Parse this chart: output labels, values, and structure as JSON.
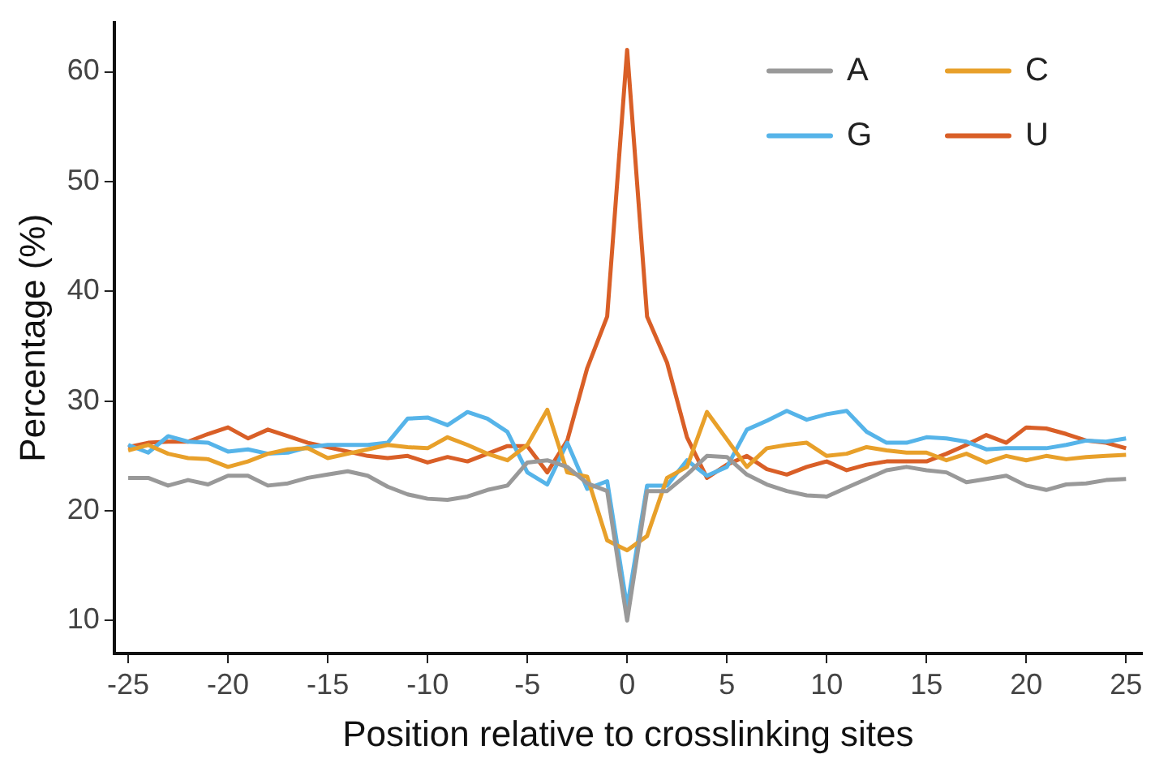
{
  "chart_data": {
    "type": "line",
    "xlabel": "Position relative to crosslinking sites",
    "ylabel": "Percentage (%)",
    "x": [
      -25,
      -24,
      -23,
      -22,
      -21,
      -20,
      -19,
      -18,
      -17,
      -16,
      -15,
      -14,
      -13,
      -12,
      -11,
      -10,
      -9,
      -8,
      -7,
      -6,
      -5,
      -4,
      -3,
      -2,
      -1,
      0,
      1,
      2,
      3,
      4,
      5,
      6,
      7,
      8,
      9,
      10,
      11,
      12,
      13,
      14,
      15,
      16,
      17,
      18,
      19,
      20,
      21,
      22,
      23,
      24,
      25
    ],
    "xlim": [
      -25.7,
      25.8
    ],
    "xticks": [
      -25,
      -20,
      -15,
      -10,
      -5,
      0,
      5,
      10,
      15,
      20,
      25
    ],
    "ylim": [
      7,
      64.5
    ],
    "yticks": [
      10,
      20,
      30,
      40,
      50,
      60
    ],
    "grid": false,
    "legend": "top right",
    "marker": "none",
    "line_style": "solid",
    "series": [
      {
        "name": "A",
        "color": "#999999",
        "values": [
          23,
          23,
          22.3,
          22.8,
          22.4,
          23.2,
          23.2,
          22.3,
          22.5,
          23,
          23.3,
          23.6,
          23.2,
          22.2,
          21.5,
          21.1,
          21,
          21.3,
          21.9,
          22.3,
          24.4,
          24.6,
          24,
          22.5,
          21.8,
          10,
          21.8,
          21.8,
          23.3,
          25,
          24.9,
          23.3,
          22.4,
          21.8,
          21.4,
          21.3,
          22.1,
          22.9,
          23.7,
          24,
          23.7,
          23.5,
          22.6,
          22.9,
          23.2,
          22.3,
          21.9,
          22.4,
          22.5,
          22.8,
          22.9
        ]
      },
      {
        "name": "C",
        "color": "#e8a02a",
        "values": [
          25.5,
          26,
          25.2,
          24.8,
          24.7,
          24,
          24.5,
          25.2,
          25.6,
          25.7,
          24.8,
          25.2,
          25.6,
          26,
          25.8,
          25.7,
          26.7,
          26,
          25.2,
          24.6,
          26,
          29.2,
          23.5,
          23.1,
          17.3,
          16.4,
          17.7,
          23,
          24,
          29,
          26.5,
          24,
          25.7,
          26,
          26.2,
          25,
          25.2,
          25.8,
          25.5,
          25.3,
          25.3,
          24.6,
          25.2,
          24.4,
          25,
          24.6,
          25,
          24.7,
          24.9,
          25,
          25.1
        ]
      },
      {
        "name": "G",
        "color": "#56b4e9",
        "values": [
          26,
          25.3,
          26.8,
          26.3,
          26.2,
          25.4,
          25.6,
          25.2,
          25.3,
          25.8,
          26,
          26,
          26,
          26.2,
          28.4,
          28.5,
          27.8,
          29,
          28.4,
          27.2,
          23.5,
          22.4,
          26.2,
          22,
          22.7,
          11.2,
          22.3,
          22.3,
          24.6,
          23.2,
          24,
          27.4,
          28.2,
          29.1,
          28.3,
          28.8,
          29.1,
          27.2,
          26.2,
          26.2,
          26.7,
          26.6,
          26.3,
          25.6,
          25.7,
          25.7,
          25.7,
          26,
          26.4,
          26.3,
          26.6
        ]
      },
      {
        "name": "U",
        "color": "#d95f27",
        "values": [
          25.8,
          26.2,
          26.3,
          26.3,
          27,
          27.6,
          26.6,
          27.4,
          26.8,
          26.2,
          25.8,
          25.4,
          25,
          24.8,
          25,
          24.4,
          24.9,
          24.5,
          25.2,
          25.9,
          25.9,
          23.5,
          26.4,
          33,
          37.7,
          62,
          37.7,
          33.5,
          26.7,
          23,
          24.2,
          25,
          23.8,
          23.3,
          24,
          24.5,
          23.7,
          24.2,
          24.5,
          24.5,
          24.5,
          25.2,
          26,
          26.9,
          26.2,
          27.6,
          27.5,
          27,
          26.4,
          26.2,
          25.7
        ]
      }
    ]
  }
}
